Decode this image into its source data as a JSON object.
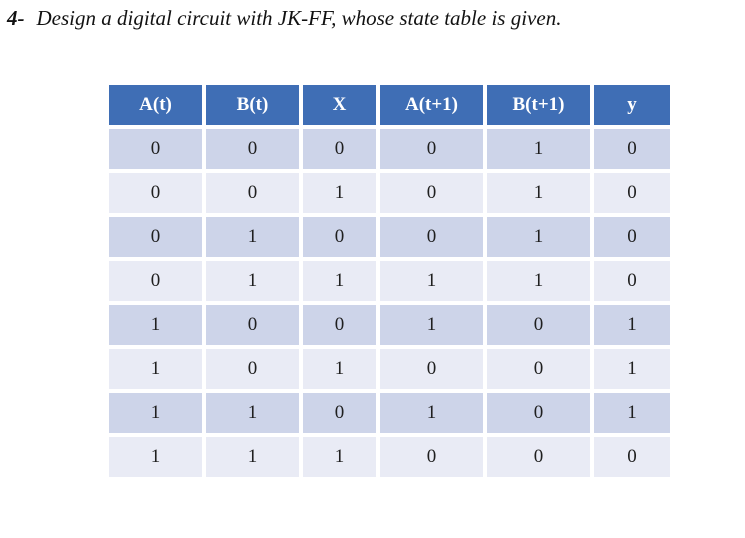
{
  "title": {
    "number": "4-",
    "text": "Design a digital circuit with JK-FF, whose state table is given."
  },
  "table": {
    "columns": [
      "A(t)",
      "B(t)",
      "X",
      "A(t+1)",
      "B(t+1)",
      "y"
    ],
    "rows": [
      [
        "0",
        "0",
        "0",
        "0",
        "1",
        "0"
      ],
      [
        "0",
        "0",
        "1",
        "0",
        "1",
        "0"
      ],
      [
        "0",
        "1",
        "0",
        "0",
        "1",
        "0"
      ],
      [
        "0",
        "1",
        "1",
        "1",
        "1",
        "0"
      ],
      [
        "1",
        "0",
        "0",
        "1",
        "0",
        "1"
      ],
      [
        "1",
        "0",
        "1",
        "0",
        "0",
        "1"
      ],
      [
        "1",
        "1",
        "0",
        "1",
        "0",
        "1"
      ],
      [
        "1",
        "1",
        "1",
        "0",
        "0",
        "0"
      ]
    ]
  },
  "colors": {
    "header_bg": "#3F6EB5",
    "header_text": "#FFFFFF",
    "row_band_dark": "#CDD4E9",
    "row_band_light": "#E9EBF5",
    "body_text": "#1F1F1F"
  }
}
